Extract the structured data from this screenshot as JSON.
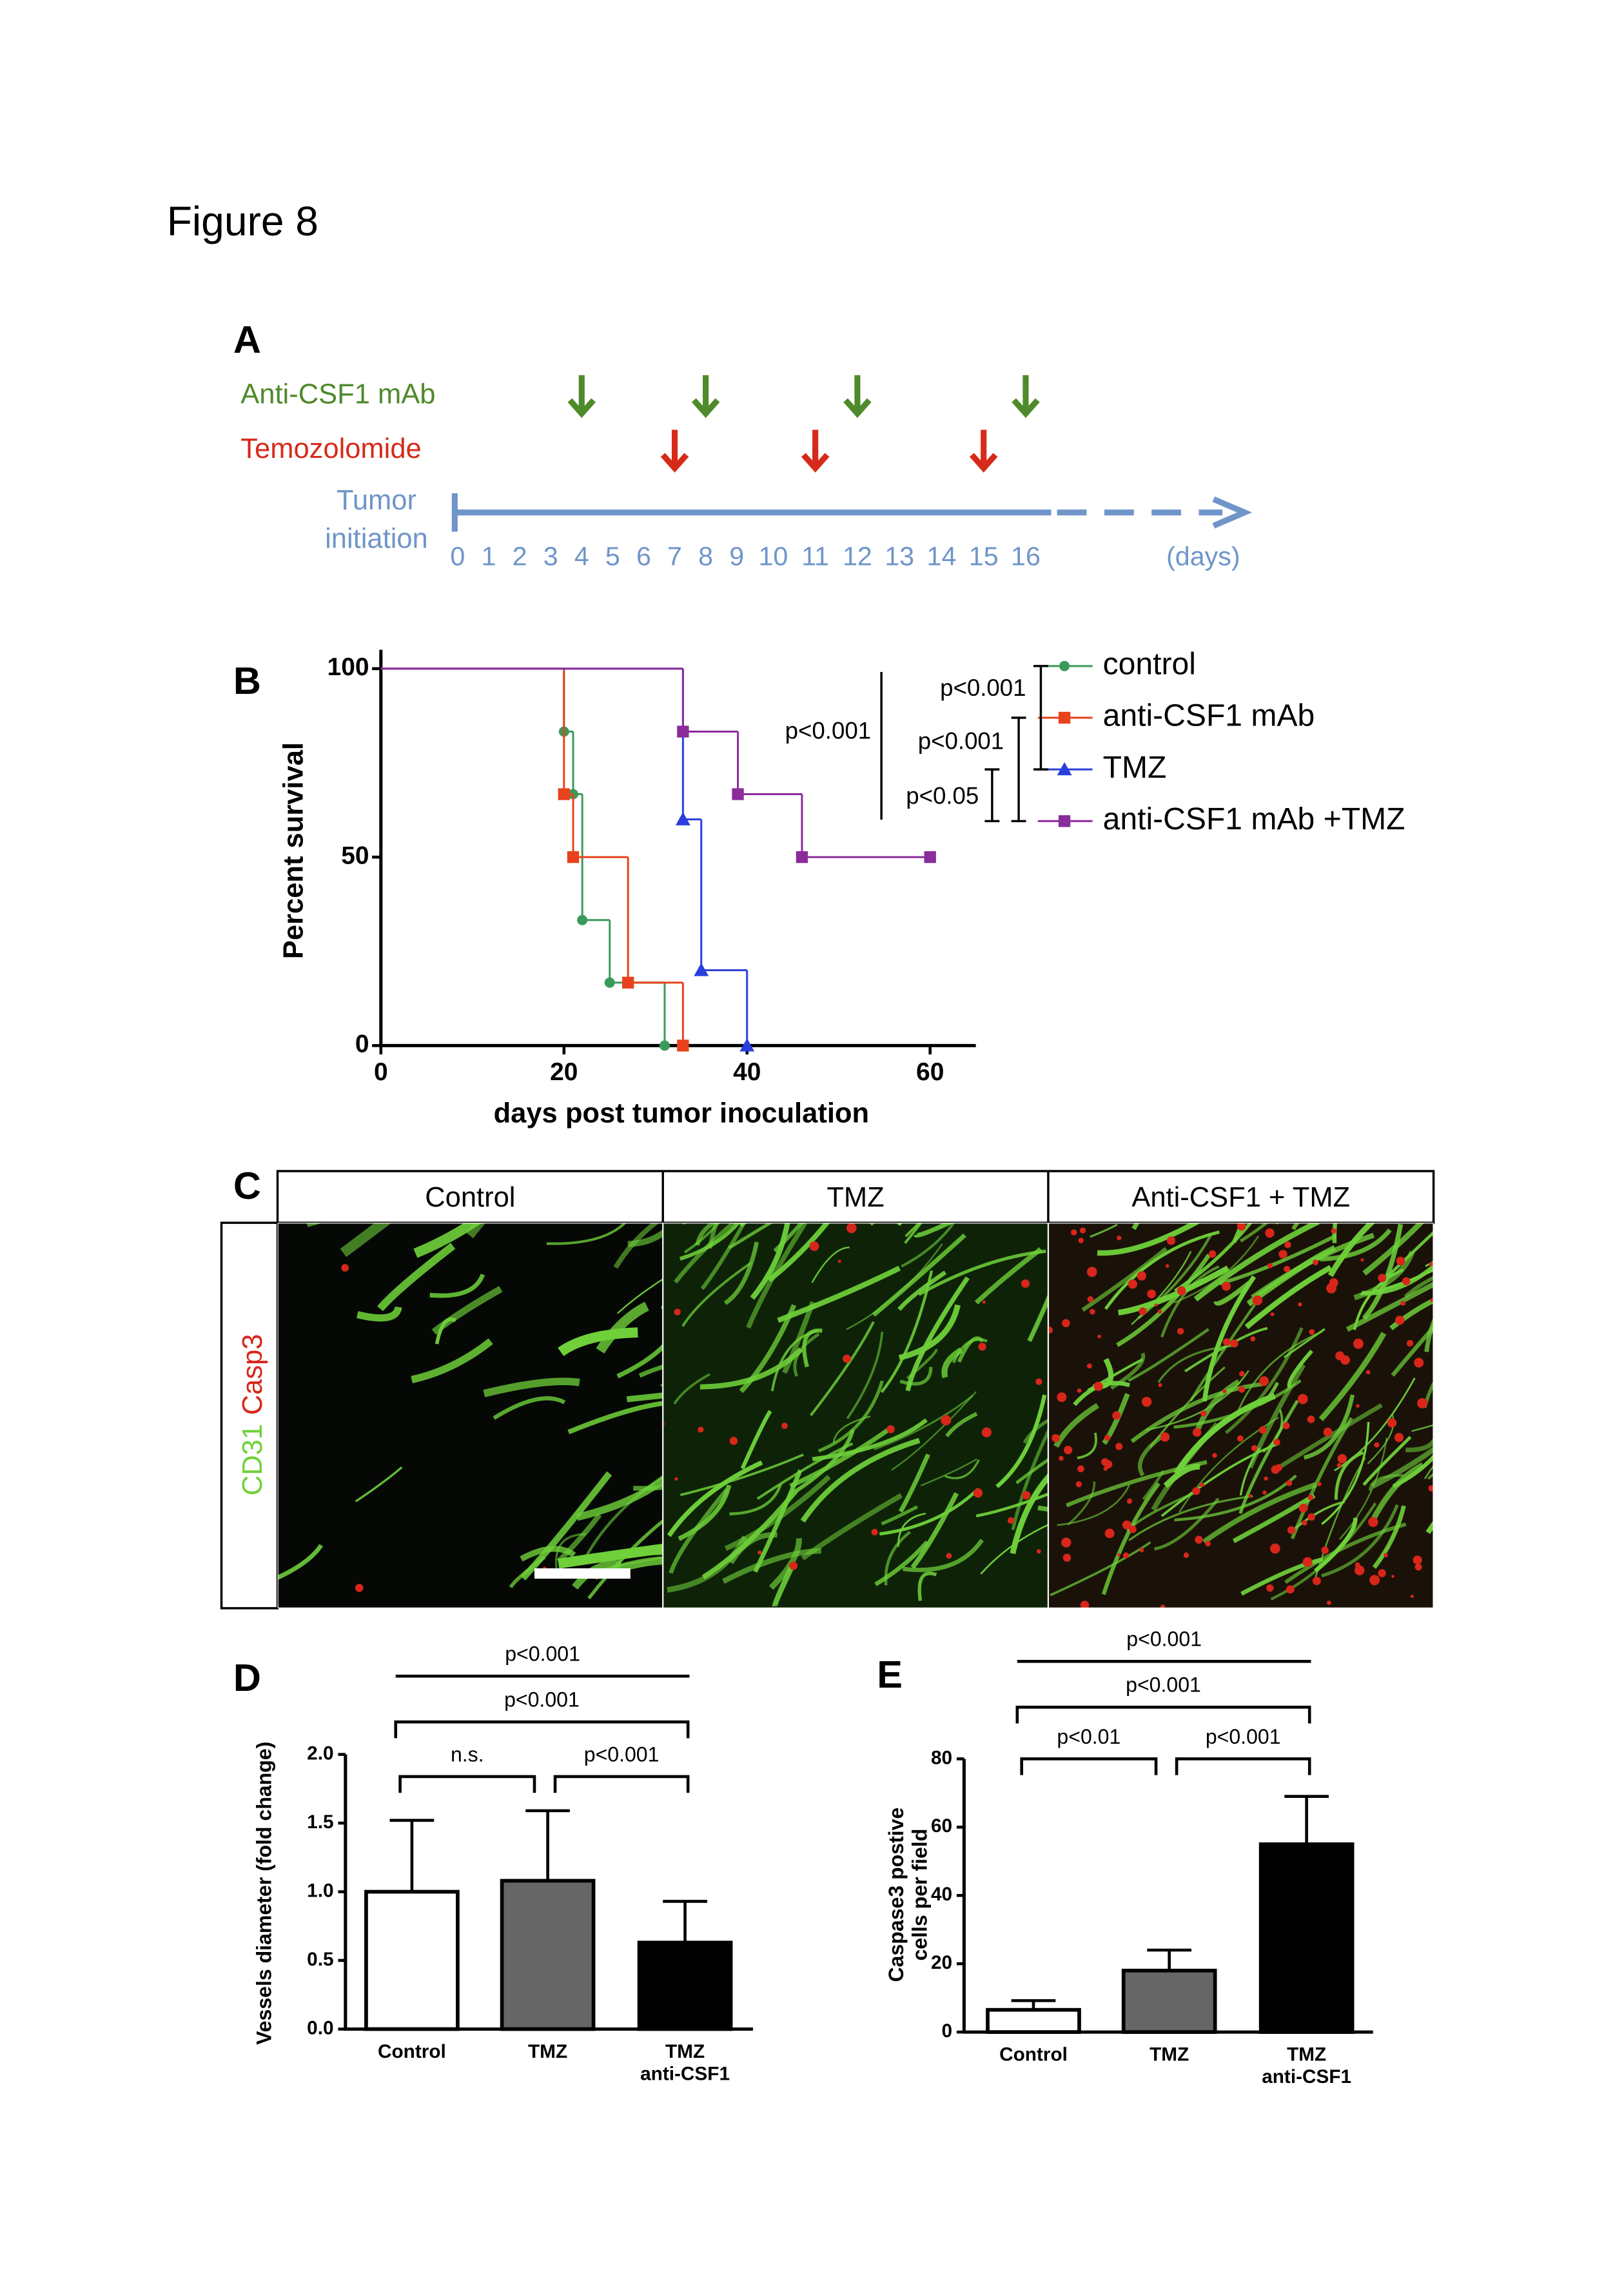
{
  "figure_title": "Figure 8",
  "panel_labels": [
    "A",
    "B",
    "C",
    "D",
    "E"
  ],
  "timeline": {
    "treatments": [
      {
        "name": "Anti-CSF1 mAb",
        "color": "#4f8a2b",
        "days": [
          4,
          8,
          12,
          16
        ]
      },
      {
        "name": "Temozolomide",
        "color": "#d62a1a",
        "days": [
          7,
          11,
          15
        ]
      }
    ],
    "start_label": [
      "Tumor",
      "initiation"
    ],
    "days": [
      0,
      1,
      2,
      3,
      4,
      5,
      6,
      7,
      8,
      9,
      10,
      11,
      12,
      13,
      14,
      15,
      16
    ],
    "unit_label": "(days)",
    "color": "#6f95c9"
  },
  "micrographs": {
    "columns": [
      "Control",
      "TMZ",
      "Anti-CSF1 + TMZ"
    ],
    "stains": [
      {
        "name": "CD31",
        "color": "#6fd13a"
      },
      {
        "name": "Casp3",
        "color": "#d8261b"
      }
    ]
  },
  "chart_data": [
    {
      "type": "step",
      "xlabel": "days post tumor inoculation",
      "ylabel": "Percent survival",
      "xlim": [
        0,
        65
      ],
      "ylim": [
        0,
        105
      ],
      "xticks": [
        0,
        20,
        40,
        60
      ],
      "yticks": [
        0,
        50,
        100
      ],
      "series": [
        {
          "name": "control",
          "color": "#3a9a5a",
          "marker": "circle",
          "x": [
            0,
            20,
            21,
            22,
            25,
            31
          ],
          "values": [
            100,
            83.3,
            66.7,
            33.3,
            16.7,
            0
          ]
        },
        {
          "name": "anti-CSF1 mAb",
          "color": "#e8421c",
          "marker": "square",
          "x": [
            0,
            20,
            21,
            27,
            33
          ],
          "values": [
            100,
            66.7,
            50,
            16.7,
            0
          ]
        },
        {
          "name": "TMZ",
          "color": "#2a3fdd",
          "marker": "triangle",
          "x": [
            0,
            33,
            35,
            40
          ],
          "values": [
            100,
            60,
            20,
            0
          ]
        },
        {
          "name": "anti-CSF1 mAb +TMZ",
          "color": "#8a2c9a",
          "marker": "square",
          "x": [
            0,
            33,
            39,
            46,
            60
          ],
          "values": [
            100,
            83.3,
            66.7,
            50,
            50
          ]
        }
      ],
      "annotations": [
        "p<0.001",
        "p<0.001",
        "p<0.05",
        "p<0.001"
      ]
    },
    {
      "type": "bar",
      "ylabel": "Vessels diameter (fold change)",
      "categories": [
        "Control",
        "TMZ",
        [
          "TMZ",
          "anti-CSF1"
        ]
      ],
      "values": [
        1.0,
        1.08,
        0.63
      ],
      "errors": [
        0.52,
        0.51,
        0.3
      ],
      "colors": [
        "#ffffff",
        "#666666",
        "#000000"
      ],
      "ylim": [
        0,
        2
      ],
      "yticks": [
        {
          "value": 0,
          "label": "0.0"
        },
        {
          "value": 0.5,
          "label": "0.5"
        },
        {
          "value": 1,
          "label": "1.0"
        },
        {
          "value": 1.5,
          "label": "1.5"
        },
        {
          "value": 2,
          "label": "2.0"
        }
      ],
      "annotations": [
        "n.s.",
        "p<0.001",
        "p<0.001",
        "p<0.001"
      ]
    },
    {
      "type": "bar",
      "ylabel": [
        "Caspase3 postive",
        "cells per field"
      ],
      "categories": [
        "Control",
        "TMZ",
        [
          "TMZ",
          "anti-CSF1"
        ]
      ],
      "values": [
        6.5,
        18,
        55
      ],
      "errors": [
        2.7,
        6,
        14
      ],
      "colors": [
        "#ffffff",
        "#666666",
        "#000000"
      ],
      "ylim": [
        0,
        80
      ],
      "yticks": [
        0,
        20,
        40,
        60,
        80
      ],
      "annotations": [
        "p<0.01",
        "p<0.001",
        "p<0.001",
        "p<0.001"
      ]
    }
  ]
}
